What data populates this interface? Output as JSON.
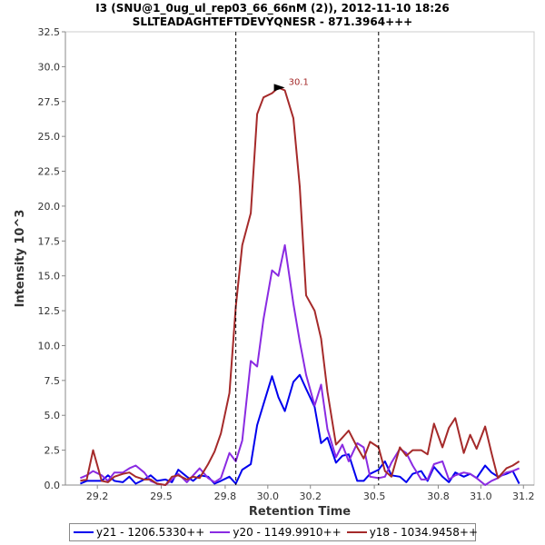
{
  "chart_data": {
    "type": "line",
    "title_line1": "I3 (SNU@1_0ug_ul_rep03_66_66nM (2)), 2012-11-10 18:26",
    "title_line2": "SLLTEADAGHTEFTDEVYQNESR - 871.3964+++",
    "xlabel": "Retention Time",
    "ylabel": "Intensity 10^3",
    "xlim": [
      29.05,
      31.25
    ],
    "ylim": [
      0,
      32.5
    ],
    "xticks": [
      "29.2",
      "29.5",
      "29.8",
      "30.0",
      "30.2",
      "30.5",
      "30.8",
      "31.0",
      "31.2"
    ],
    "xtick_values": [
      29.2,
      29.5,
      29.8,
      30.0,
      30.2,
      30.5,
      30.8,
      31.0,
      31.2
    ],
    "yticks": [
      "0.0",
      "2.5",
      "5.0",
      "7.5",
      "10.0",
      "12.5",
      "15.0",
      "17.5",
      "20.0",
      "22.5",
      "25.0",
      "27.5",
      "30.0",
      "32.5"
    ],
    "ytick_values": [
      0,
      2.5,
      5,
      7.5,
      10,
      12.5,
      15,
      17.5,
      20,
      22.5,
      25,
      27.5,
      30,
      32.5
    ],
    "vlines": [
      29.85,
      30.52
    ],
    "peak_annotation": {
      "label": "30.1",
      "x": 30.08,
      "y": 28.5,
      "color": "#a52a2a"
    },
    "x": [
      29.12,
      29.15,
      29.18,
      29.22,
      29.25,
      29.28,
      29.32,
      29.35,
      29.38,
      29.42,
      29.45,
      29.48,
      29.52,
      29.55,
      29.58,
      29.62,
      29.65,
      29.68,
      29.72,
      29.75,
      29.78,
      29.82,
      29.85,
      29.88,
      29.92,
      29.95,
      29.98,
      30.02,
      30.05,
      30.08,
      30.12,
      30.15,
      30.18,
      30.22,
      30.25,
      30.28,
      30.32,
      30.35,
      30.38,
      30.42,
      30.45,
      30.48,
      30.52,
      30.55,
      30.58,
      30.62,
      30.65,
      30.68,
      30.72,
      30.75,
      30.78,
      30.82,
      30.85,
      30.88,
      30.92,
      30.95,
      30.98,
      31.02,
      31.05,
      31.08,
      31.12,
      31.15,
      31.18
    ],
    "series": [
      {
        "name": "y21 - 1206.5330++",
        "color": "#0000ee",
        "values": [
          0.1,
          0.3,
          0.3,
          0.3,
          0.7,
          0.3,
          0.2,
          0.6,
          0.1,
          0.4,
          0.7,
          0.3,
          0.4,
          0.2,
          1.1,
          0.6,
          0.3,
          0.7,
          0.6,
          0.1,
          0.3,
          0.6,
          0.1,
          1.1,
          1.5,
          4.3,
          5.8,
          7.8,
          6.3,
          5.3,
          7.4,
          7.9,
          6.9,
          5.6,
          3.0,
          3.4,
          1.6,
          2.1,
          2.2,
          0.3,
          0.3,
          0.8,
          1.1,
          1.7,
          0.7,
          0.6,
          0.2,
          0.8,
          1.0,
          0.3,
          1.3,
          0.6,
          0.2,
          0.9,
          0.6,
          0.8,
          0.5,
          1.4,
          0.9,
          0.6,
          0.8,
          1.0,
          0.1
        ]
      },
      {
        "name": "y20 - 1149.9910++",
        "color": "#8a2be2",
        "values": [
          0.5,
          0.7,
          1.0,
          0.7,
          0.3,
          0.9,
          0.9,
          1.2,
          1.4,
          0.9,
          0.3,
          0.1,
          0.0,
          0.4,
          0.8,
          0.2,
          0.7,
          1.2,
          0.5,
          0.2,
          0.5,
          2.3,
          1.7,
          3.2,
          8.9,
          8.5,
          11.9,
          15.4,
          15.0,
          17.2,
          13.0,
          10.3,
          7.9,
          5.7,
          7.2,
          4.0,
          2.0,
          2.9,
          1.7,
          3.0,
          2.7,
          0.6,
          0.5,
          0.6,
          1.6,
          2.6,
          2.3,
          1.4,
          0.4,
          0.4,
          1.5,
          1.7,
          0.4,
          0.7,
          0.9,
          0.8,
          0.5,
          0.0,
          0.3,
          0.5,
          0.9,
          1.0,
          1.2
        ]
      },
      {
        "name": "y18 - 1034.9458++",
        "color": "#a52a2a",
        "values": [
          0.3,
          0.4,
          2.5,
          0.3,
          0.2,
          0.6,
          0.8,
          0.9,
          0.6,
          0.4,
          0.4,
          0.1,
          0.0,
          0.6,
          0.7,
          0.4,
          0.6,
          0.5,
          1.5,
          2.4,
          3.7,
          6.6,
          12.8,
          17.2,
          19.5,
          26.6,
          27.8,
          28.1,
          28.5,
          28.3,
          26.3,
          21.4,
          13.6,
          12.5,
          10.5,
          6.7,
          2.9,
          3.4,
          3.9,
          2.7,
          1.9,
          3.1,
          2.7,
          1.0,
          0.6,
          2.7,
          2.1,
          2.5,
          2.5,
          2.2,
          4.4,
          2.7,
          4.1,
          4.8,
          2.3,
          3.6,
          2.6,
          4.2,
          2.3,
          0.5,
          1.2,
          1.4,
          1.7
        ]
      }
    ]
  }
}
